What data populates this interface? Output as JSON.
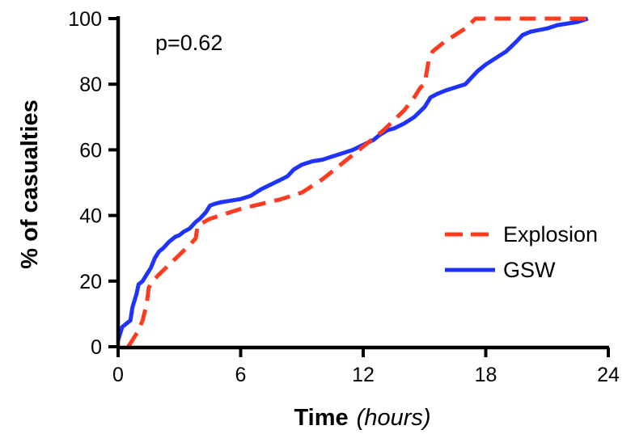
{
  "chart_data": {
    "type": "line",
    "title": "",
    "xlabel": "Time",
    "xlabel_unit": "(hours)",
    "ylabel": "% of casualties",
    "xlim": [
      0,
      24
    ],
    "ylim": [
      0,
      100
    ],
    "x_ticks": [
      0,
      6,
      12,
      18,
      24
    ],
    "y_ticks": [
      0,
      20,
      40,
      60,
      80,
      100
    ],
    "x_tick_labels": [
      "0",
      "6",
      "12",
      "18",
      "24"
    ],
    "y_tick_labels": [
      "0",
      "20",
      "40",
      "60",
      "80",
      "100"
    ],
    "grid": false,
    "legend_position": "right",
    "annotation": "p=0.62",
    "series": [
      {
        "name": "Explosion",
        "color": "#ff3b1f",
        "style": "dashed",
        "x": [
          0.5,
          0.7,
          1.0,
          1.2,
          1.4,
          1.5,
          1.7,
          2.0,
          2.5,
          3.0,
          3.5,
          3.8,
          3.9,
          4.5,
          5.0,
          6.0,
          7.0,
          8.0,
          9.0,
          10.0,
          11.0,
          12.0,
          13.0,
          14.0,
          14.5,
          14.8,
          15.0,
          15.2,
          15.4,
          16.0,
          17.0,
          17.5,
          23.0
        ],
        "y": [
          0,
          2,
          5,
          8,
          13,
          18,
          20,
          22,
          25,
          28,
          31,
          33,
          37,
          39,
          40,
          42,
          43.5,
          45,
          47,
          51,
          56,
          61,
          66,
          72,
          76,
          79,
          80,
          87,
          90,
          93,
          97,
          100,
          100
        ]
      },
      {
        "name": "GSW",
        "color": "#1f33ff",
        "style": "solid",
        "x": [
          0.0,
          0.1,
          0.2,
          0.4,
          0.6,
          0.7,
          0.9,
          1.0,
          1.2,
          1.4,
          1.6,
          1.8,
          2.0,
          2.2,
          2.5,
          2.8,
          3.0,
          3.2,
          3.5,
          3.8,
          4.0,
          4.3,
          4.5,
          4.7,
          5.0,
          5.5,
          6.0,
          6.5,
          7.0,
          7.5,
          8.0,
          8.3,
          8.6,
          9.0,
          9.5,
          10.0,
          10.5,
          11.0,
          11.5,
          12.0,
          12.5,
          12.8,
          13.2,
          13.5,
          14.0,
          14.5,
          15.0,
          15.3,
          15.6,
          16.0,
          16.5,
          17.0,
          17.3,
          17.6,
          18.0,
          18.5,
          19.0,
          19.5,
          19.8,
          20.2,
          21.0,
          21.5,
          22.0,
          22.5,
          23.0
        ],
        "y": [
          2,
          4,
          6,
          7,
          8,
          12,
          16,
          19,
          20,
          22,
          24,
          27,
          29,
          30,
          32,
          33.5,
          34,
          35,
          36,
          38,
          39,
          41,
          43,
          43.5,
          44,
          44.5,
          45,
          46,
          48,
          49.5,
          51,
          52,
          54,
          55.5,
          56.5,
          57,
          58,
          59,
          60,
          61.5,
          63,
          64.5,
          66,
          66.5,
          68,
          70,
          73,
          76,
          77,
          78,
          79,
          80,
          82,
          84,
          86,
          88,
          90,
          93,
          95,
          96,
          97,
          98,
          98.5,
          99,
          100
        ]
      }
    ]
  }
}
